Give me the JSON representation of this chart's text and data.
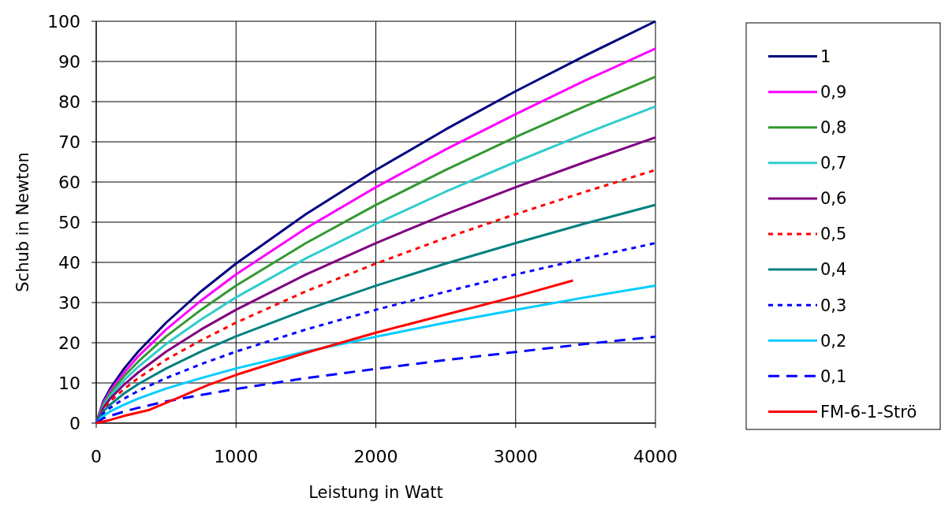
{
  "chart_data": {
    "type": "line",
    "xlabel": "Leistung in Watt",
    "ylabel": "Schub in Newton",
    "x": [
      0,
      50,
      100,
      200,
      300,
      500,
      750,
      1000,
      1500,
      2000,
      2500,
      3000,
      3500,
      4000
    ],
    "xlim": [
      0,
      4000
    ],
    "xticks": [
      0,
      1000,
      2000,
      3000,
      4000
    ],
    "ylim": [
      0,
      100
    ],
    "yticks": [
      0,
      10,
      20,
      30,
      40,
      50,
      60,
      70,
      80,
      90,
      100
    ],
    "grid": true,
    "legend": "right",
    "series": [
      {
        "name": "1",
        "color": "#000080",
        "values": [
          0,
          5.4,
          8.6,
          13.6,
          17.8,
          25,
          32.8,
          39.7,
          52,
          63,
          73.1,
          82.6,
          91.5,
          100
        ]
      },
      {
        "name": "0,9",
        "color": "#ff00ff",
        "values": [
          0,
          5.0,
          8.0,
          12.6,
          16.6,
          23.3,
          30.5,
          37.0,
          48.5,
          58.7,
          68.1,
          76.9,
          85.3,
          93.2
        ]
      },
      {
        "name": "0,8",
        "color": "#339933",
        "values": [
          0,
          4.6,
          7.4,
          11.7,
          15.3,
          21.6,
          28.2,
          34.2,
          44.8,
          54.3,
          63.0,
          71.2,
          78.9,
          86.2
        ]
      },
      {
        "name": "0,7",
        "color": "#33cccc",
        "values": [
          0,
          4.2,
          6.7,
          10.7,
          14.0,
          19.7,
          25.8,
          31.3,
          41.0,
          49.6,
          57.6,
          65.0,
          72.1,
          78.8
        ]
      },
      {
        "name": "0,6",
        "color": "#800080",
        "values": [
          0,
          3.8,
          6.1,
          9.6,
          12.6,
          17.8,
          23.3,
          28.2,
          37.0,
          44.8,
          52.0,
          58.7,
          65.0,
          71.1
        ]
      },
      {
        "name": "0,5",
        "color": "#ff0000",
        "line_style": "dotted",
        "values": [
          0,
          3.4,
          5.4,
          8.5,
          11.2,
          15.8,
          20.6,
          25.0,
          32.8,
          39.7,
          46.1,
          52.0,
          57.6,
          63.0
        ]
      },
      {
        "name": "0,4",
        "color": "#008080",
        "values": [
          0,
          2.9,
          4.6,
          7.4,
          9.7,
          13.6,
          17.8,
          21.6,
          28.2,
          34.2,
          39.7,
          44.8,
          49.7,
          54.3
        ]
      },
      {
        "name": "0,3",
        "color": "#0000ff",
        "line_style": "dotted",
        "values": [
          0,
          2.4,
          3.8,
          6.1,
          8.0,
          11.2,
          14.7,
          17.8,
          23.3,
          28.2,
          32.7,
          37.0,
          41.0,
          44.8
        ]
      },
      {
        "name": "0,2",
        "color": "#00ccff",
        "values": [
          0,
          1.8,
          2.9,
          4.6,
          6.1,
          8.6,
          11.2,
          13.6,
          17.8,
          21.5,
          25.0,
          28.2,
          31.3,
          34.2
        ]
      },
      {
        "name": "0,1",
        "color": "#0000ff",
        "line_style": "dashed",
        "values": [
          0,
          1.2,
          1.8,
          2.9,
          3.8,
          5.4,
          7.0,
          8.5,
          11.2,
          13.5,
          15.7,
          17.7,
          19.7,
          21.5
        ]
      },
      {
        "name": "FM-6-1-Strö",
        "color": "#ff0000",
        "x": [
          0,
          100,
          200,
          380,
          600,
          800,
          1000,
          1500,
          2000,
          2500,
          3000,
          3410
        ],
        "values": [
          0,
          0.8,
          1.8,
          3.3,
          6.5,
          9.5,
          12,
          17.5,
          22.5,
          27,
          31.5,
          35.5
        ]
      }
    ]
  }
}
